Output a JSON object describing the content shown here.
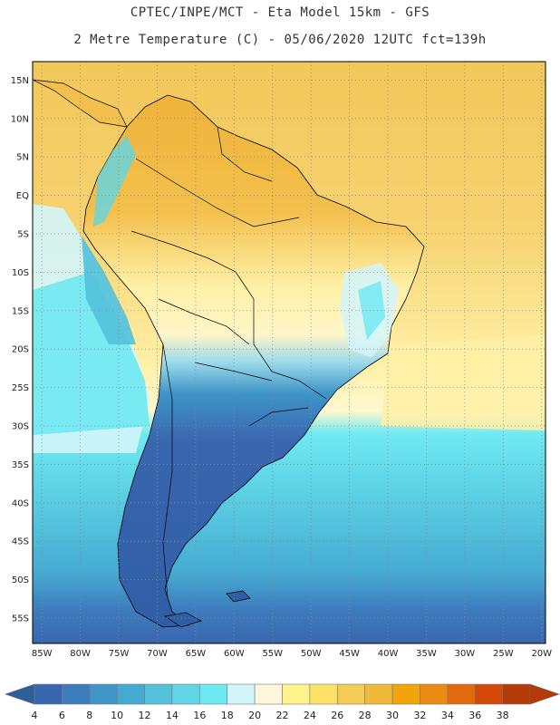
{
  "title_line1": "CPTEC/INPE/MCT -  Eta Model 15km - GFS",
  "title_line2": "2 Metre Temperature (C) - 05/06/2020 12UTC fct=139h",
  "lat_labels": [
    {
      "label": "15N",
      "lat": 15
    },
    {
      "label": "10N",
      "lat": 10
    },
    {
      "label": "5N",
      "lat": 5
    },
    {
      "label": "EQ",
      "lat": 0
    },
    {
      "label": "5S",
      "lat": -5
    },
    {
      "label": "10S",
      "lat": -10
    },
    {
      "label": "15S",
      "lat": -15
    },
    {
      "label": "20S",
      "lat": -20
    },
    {
      "label": "25S",
      "lat": -25
    },
    {
      "label": "30S",
      "lat": -30
    },
    {
      "label": "35S",
      "lat": -35
    },
    {
      "label": "40S",
      "lat": -40
    },
    {
      "label": "45S",
      "lat": -45
    },
    {
      "label": "50S",
      "lat": -50
    },
    {
      "label": "55S",
      "lat": -55
    }
  ],
  "lon_labels": [
    {
      "label": "85W",
      "lon": -85
    },
    {
      "label": "80W",
      "lon": -80
    },
    {
      "label": "75W",
      "lon": -75
    },
    {
      "label": "70W",
      "lon": -70
    },
    {
      "label": "65W",
      "lon": -65
    },
    {
      "label": "60W",
      "lon": -60
    },
    {
      "label": "55W",
      "lon": -55
    },
    {
      "label": "50W",
      "lon": -50
    },
    {
      "label": "45W",
      "lon": -45
    },
    {
      "label": "40W",
      "lon": -40
    },
    {
      "label": "35W",
      "lon": -35
    },
    {
      "label": "30W",
      "lon": -30
    },
    {
      "label": "25W",
      "lon": -25
    },
    {
      "label": "20W",
      "lon": -20
    }
  ],
  "colorbar": {
    "ticks": [
      "4",
      "6",
      "8",
      "10",
      "12",
      "14",
      "16",
      "18",
      "20",
      "22",
      "24",
      "26",
      "28",
      "30",
      "32",
      "34",
      "36",
      "38"
    ],
    "colors": [
      "#3a66b0",
      "#3d7dbd",
      "#3f95c8",
      "#45aad2",
      "#53c1dc",
      "#60d6e6",
      "#6fe9f2",
      "#d2f5fb",
      "#fff7dc",
      "#fff48c",
      "#fbe267",
      "#f5cc54",
      "#efba3c",
      "#f2a40a",
      "#ec8b12",
      "#e26a0c",
      "#d4490a",
      "#b43a07"
    ],
    "low_color": "#2d5f9a",
    "high_color": "#b43a07"
  },
  "map_colors": {
    "ocean_warm": "#f3c75a",
    "ocean_mid": "#fff0a6",
    "ocean_cool": "#6fe9f2",
    "ocean_cold": "#45aad2",
    "ocean_coldest": "#3a66b0",
    "land_hot": "#efb33b",
    "land_warm": "#fff0a6",
    "land_cool": "#d2f5fb",
    "land_cold": "#3a66b0",
    "border": "#000000",
    "grid": "#8a8a8a"
  }
}
